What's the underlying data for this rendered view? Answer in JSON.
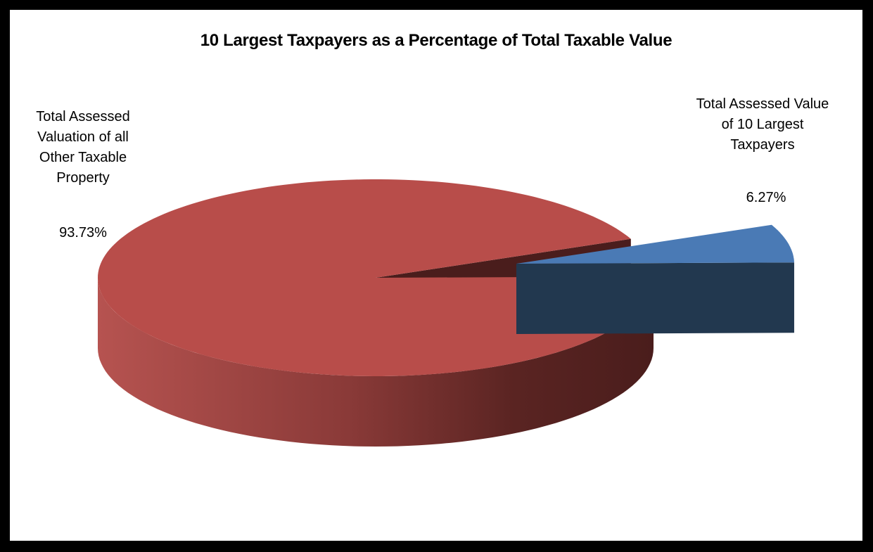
{
  "chart_data": {
    "type": "pie",
    "style": "3d-exploded",
    "title": "10 Largest Taxpayers as a Percentage of Total Taxable Value",
    "slices": [
      {
        "name": "Total Assessed Valuation of all Other Taxable Property",
        "name_lines": [
          "Total Assessed",
          "Valuation of all",
          "Other Taxable",
          "Property"
        ],
        "value": 93.73,
        "label": "93.73%",
        "color": "#B84D4A",
        "exploded": false
      },
      {
        "name": "Total Assessed Value of 10 Largest Taxpayers",
        "name_lines": [
          "Total Assessed Value",
          "of 10 Largest",
          "Taxpayers"
        ],
        "value": 6.27,
        "label": "6.27%",
        "color": "#4A7AB5",
        "exploded": true
      }
    ],
    "legend": "none",
    "data_labels": "outside"
  }
}
